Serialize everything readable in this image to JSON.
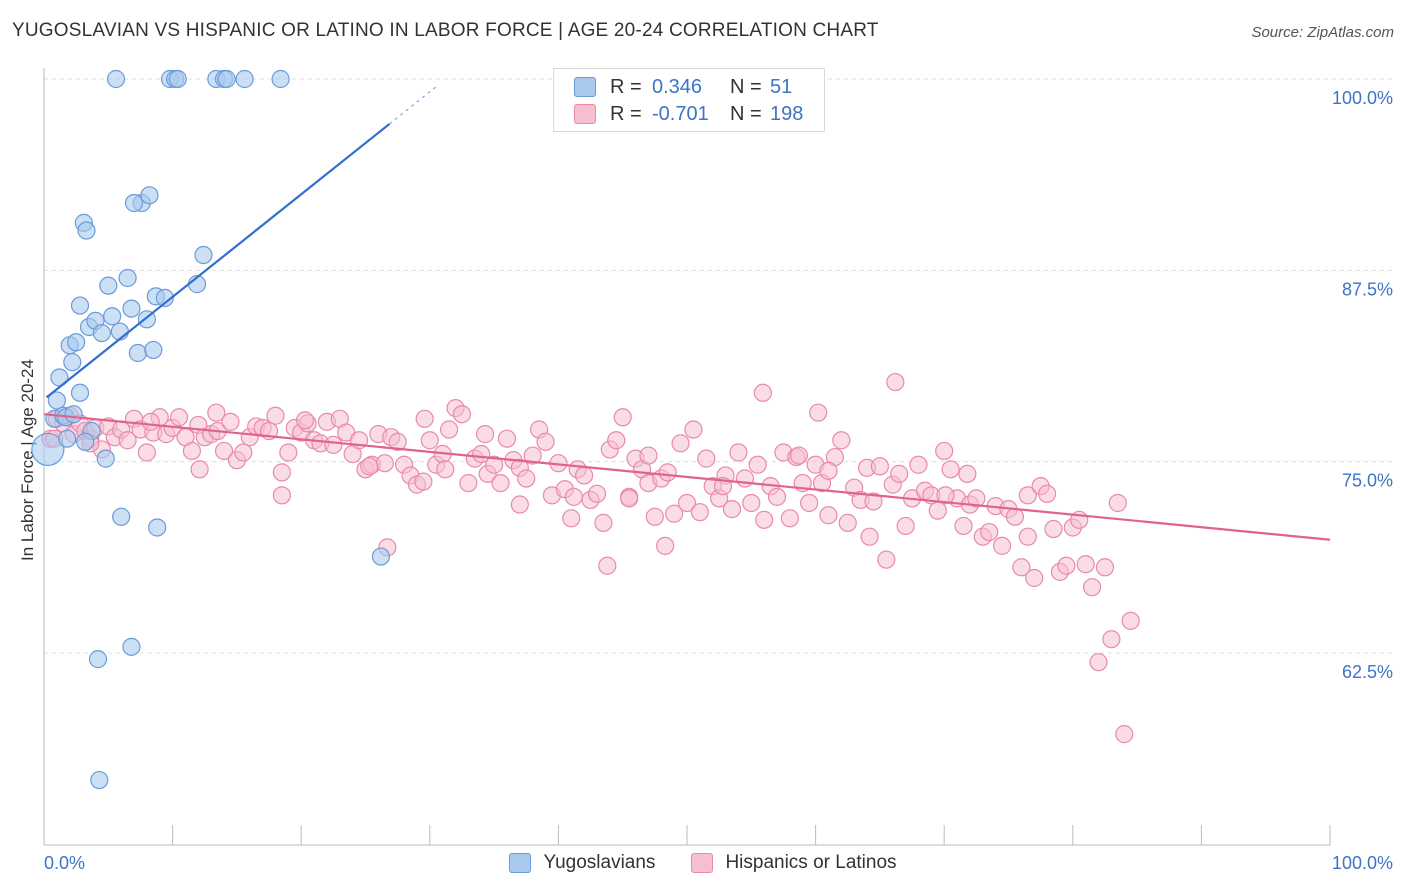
{
  "title": "YUGOSLAVIAN VS HISPANIC OR LATINO IN LABOR FORCE | AGE 20-24 CORRELATION CHART",
  "source": "Source: ZipAtlas.com",
  "colors": {
    "blue_fill": "#a9c9ef",
    "blue_stroke": "#6b9bd8",
    "blue_line": "#2f6fd0",
    "pink_fill": "#f6bfd0",
    "pink_stroke": "#e98aa9",
    "pink_line": "#e0638e",
    "tick_label": "#3d74c6",
    "grid": "#dddddd"
  },
  "legend": {
    "rows": [
      {
        "r_label": "R =",
        "r_value": "0.346",
        "n_label": "N =",
        "n_value": "51"
      },
      {
        "r_label": "R =",
        "r_value": "-0.701",
        "n_label": "N =",
        "n_value": "198"
      }
    ]
  },
  "bottom_legend": [
    "Yugoslavians",
    "Hispanics or Latinos"
  ],
  "chart_data": {
    "type": "scatter",
    "title": "YUGOSLAVIAN VS HISPANIC OR LATINO IN LABOR FORCE | AGE 20-24 CORRELATION CHART",
    "ylabel": "In Labor Force | Age 20-24",
    "xlabel": "",
    "xlim": [
      0,
      100
    ],
    "ylim": [
      51.5,
      101.5
    ],
    "x_tick_labels": [
      "0.0%",
      "100.0%"
    ],
    "y_tick_labels": [
      "100.0%",
      "87.5%",
      "75.0%",
      "62.5%"
    ],
    "y_ticks": [
      100,
      87.5,
      75,
      62.5
    ],
    "grid": true,
    "legend_position": "top-center",
    "series": [
      {
        "name": "Yugoslavians",
        "R": 0.346,
        "N": 51,
        "trend": {
          "x": [
            0.2,
            30.5
          ],
          "y": 79.2,
          "y_end": 99.5
        },
        "points": [
          [
            0.3,
            75.8
          ],
          [
            0.8,
            77.8
          ],
          [
            1,
            79
          ],
          [
            1.2,
            80.5
          ],
          [
            1.5,
            78
          ],
          [
            1.8,
            76.5
          ],
          [
            2,
            82.6
          ],
          [
            2.2,
            81.5
          ],
          [
            2.5,
            82.8
          ],
          [
            2.8,
            79.5
          ],
          [
            2.8,
            85.2
          ],
          [
            3.1,
            90.6
          ],
          [
            3.3,
            90.1
          ],
          [
            3.5,
            83.8
          ],
          [
            3.7,
            77
          ],
          [
            4,
            84.2
          ],
          [
            4.5,
            83.4
          ],
          [
            4.8,
            75.2
          ],
          [
            5,
            86.5
          ],
          [
            5.3,
            84.5
          ],
          [
            5.6,
            100
          ],
          [
            5.9,
            83.5
          ],
          [
            6,
            71.4
          ],
          [
            6.5,
            87
          ],
          [
            6.8,
            85
          ],
          [
            7.3,
            82.1
          ],
          [
            7.6,
            91.9
          ],
          [
            8,
            84.3
          ],
          [
            8.5,
            82.3
          ],
          [
            8.7,
            85.8
          ],
          [
            9.4,
            85.7
          ],
          [
            9.8,
            100
          ],
          [
            10.2,
            100
          ],
          [
            11.9,
            86.6
          ],
          [
            12.4,
            88.5
          ],
          [
            13.4,
            100
          ],
          [
            14,
            100
          ],
          [
            15.6,
            100
          ],
          [
            18.4,
            100
          ],
          [
            8.2,
            92.4
          ],
          [
            7,
            91.9
          ],
          [
            8.8,
            70.7
          ],
          [
            6.8,
            62.9
          ],
          [
            4.2,
            62.1
          ],
          [
            4.3,
            54.2
          ],
          [
            26.2,
            68.8
          ],
          [
            10.4,
            100
          ],
          [
            14.2,
            100
          ],
          [
            1.7,
            77.9
          ],
          [
            2.3,
            78.1
          ],
          [
            3.2,
            76.3
          ]
        ]
      },
      {
        "name": "Hispanics or Latinos",
        "R": -0.701,
        "N": 198,
        "trend": {
          "x": [
            0,
            100
          ],
          "y": 78.1,
          "y_end": 69.9
        },
        "points": [
          [
            0.5,
            76.5
          ],
          [
            1,
            77.8
          ],
          [
            1.5,
            77.5
          ],
          [
            2,
            78
          ],
          [
            2.3,
            76.8
          ],
          [
            2.8,
            77.5
          ],
          [
            3.2,
            77
          ],
          [
            3.6,
            76.5
          ],
          [
            4,
            77.2
          ],
          [
            4.5,
            75.8
          ],
          [
            5,
            77.3
          ],
          [
            5.5,
            76.6
          ],
          [
            6,
            77.1
          ],
          [
            6.5,
            76.4
          ],
          [
            7,
            77.8
          ],
          [
            7.5,
            77.1
          ],
          [
            8,
            75.6
          ],
          [
            8.5,
            76.9
          ],
          [
            9,
            77.9
          ],
          [
            9.5,
            76.8
          ],
          [
            10,
            77.2
          ],
          [
            10.5,
            77.9
          ],
          [
            11,
            76.6
          ],
          [
            11.5,
            75.7
          ],
          [
            12,
            77.4
          ],
          [
            12.5,
            76.6
          ],
          [
            13,
            76.8
          ],
          [
            13.5,
            77
          ],
          [
            14,
            75.7
          ],
          [
            14.5,
            77.6
          ],
          [
            15,
            75.1
          ],
          [
            15.5,
            75.6
          ],
          [
            16,
            76.6
          ],
          [
            16.5,
            77.3
          ],
          [
            17,
            77.2
          ],
          [
            17.5,
            77
          ],
          [
            18,
            78
          ],
          [
            18.5,
            74.3
          ],
          [
            19,
            75.6
          ],
          [
            19.5,
            77.2
          ],
          [
            20,
            76.9
          ],
          [
            20.5,
            77.5
          ],
          [
            21,
            76.4
          ],
          [
            21.5,
            76.2
          ],
          [
            22,
            77.6
          ],
          [
            22.5,
            76.1
          ],
          [
            23,
            77.8
          ],
          [
            23.5,
            76.9
          ],
          [
            24,
            75.5
          ],
          [
            24.5,
            76.4
          ],
          [
            25,
            74.5
          ],
          [
            25.5,
            74.8
          ],
          [
            26,
            76.8
          ],
          [
            26.5,
            74.9
          ],
          [
            27,
            76.6
          ],
          [
            27.5,
            76.3
          ],
          [
            28,
            74.8
          ],
          [
            28.5,
            74.1
          ],
          [
            29,
            73.5
          ],
          [
            29.5,
            73.7
          ],
          [
            30,
            76.4
          ],
          [
            30.5,
            74.8
          ],
          [
            31,
            75.5
          ],
          [
            31.5,
            77.1
          ],
          [
            32,
            78.5
          ],
          [
            32.5,
            78.1
          ],
          [
            33,
            73.6
          ],
          [
            33.5,
            75.2
          ],
          [
            34,
            75.5
          ],
          [
            34.5,
            74.2
          ],
          [
            35,
            74.8
          ],
          [
            35.5,
            73.6
          ],
          [
            36,
            76.5
          ],
          [
            36.5,
            75.1
          ],
          [
            37,
            74.6
          ],
          [
            37.5,
            73.9
          ],
          [
            38,
            75.4
          ],
          [
            38.5,
            77.1
          ],
          [
            39,
            76.3
          ],
          [
            39.5,
            72.8
          ],
          [
            40,
            74.9
          ],
          [
            40.5,
            73.2
          ],
          [
            41,
            71.3
          ],
          [
            41.5,
            74.5
          ],
          [
            42,
            74.1
          ],
          [
            42.5,
            72.5
          ],
          [
            43,
            72.9
          ],
          [
            43.5,
            71
          ],
          [
            44,
            75.8
          ],
          [
            44.5,
            76.4
          ],
          [
            45,
            77.9
          ],
          [
            45.5,
            72.7
          ],
          [
            46,
            75.2
          ],
          [
            46.5,
            74.5
          ],
          [
            47,
            73.6
          ],
          [
            47.5,
            71.4
          ],
          [
            48,
            73.9
          ],
          [
            48.5,
            74.3
          ],
          [
            49,
            71.6
          ],
          [
            49.5,
            76.2
          ],
          [
            50,
            72.3
          ],
          [
            50.5,
            77.1
          ],
          [
            51,
            71.7
          ],
          [
            51.5,
            75.2
          ],
          [
            52,
            73.4
          ],
          [
            52.5,
            72.6
          ],
          [
            53,
            74.1
          ],
          [
            53.5,
            71.9
          ],
          [
            54,
            75.6
          ],
          [
            54.5,
            73.9
          ],
          [
            55,
            72.3
          ],
          [
            55.5,
            74.8
          ],
          [
            56,
            71.2
          ],
          [
            56.5,
            73.4
          ],
          [
            57,
            72.7
          ],
          [
            57.5,
            75.6
          ],
          [
            58,
            71.3
          ],
          [
            58.5,
            75.3
          ],
          [
            59,
            73.6
          ],
          [
            59.5,
            72.3
          ],
          [
            60,
            74.8
          ],
          [
            60.5,
            73.6
          ],
          [
            61,
            71.5
          ],
          [
            61.5,
            75.3
          ],
          [
            62,
            76.4
          ],
          [
            62.5,
            71
          ],
          [
            63,
            73.3
          ],
          [
            63.5,
            72.5
          ],
          [
            64,
            74.6
          ],
          [
            64.5,
            72.4
          ],
          [
            65,
            74.7
          ],
          [
            65.5,
            68.6
          ],
          [
            66,
            73.5
          ],
          [
            66.5,
            74.2
          ],
          [
            67,
            70.8
          ],
          [
            67.5,
            72.6
          ],
          [
            68,
            74.8
          ],
          [
            68.5,
            73.1
          ],
          [
            69,
            72.8
          ],
          [
            69.5,
            71.8
          ],
          [
            70,
            75.7
          ],
          [
            70.5,
            74.5
          ],
          [
            71,
            72.6
          ],
          [
            71.5,
            70.8
          ],
          [
            72,
            72.2
          ],
          [
            72.5,
            72.6
          ],
          [
            73,
            70.1
          ],
          [
            73.5,
            70.4
          ],
          [
            74,
            72.1
          ],
          [
            74.5,
            69.5
          ],
          [
            75,
            71.9
          ],
          [
            75.5,
            71.4
          ],
          [
            76,
            68.1
          ],
          [
            76.5,
            72.8
          ],
          [
            77,
            67.4
          ],
          [
            77.5,
            73.4
          ],
          [
            78,
            72.9
          ],
          [
            78.5,
            70.6
          ],
          [
            79,
            67.8
          ],
          [
            79.5,
            68.2
          ],
          [
            80,
            70.7
          ],
          [
            80.5,
            71.2
          ],
          [
            81,
            68.3
          ],
          [
            81.5,
            66.8
          ],
          [
            82,
            61.9
          ],
          [
            82.5,
            68.1
          ],
          [
            83,
            63.4
          ],
          [
            83.5,
            72.3
          ],
          [
            84,
            57.2
          ],
          [
            84.5,
            64.6
          ],
          [
            0.8,
            76.5
          ],
          [
            3.6,
            76.2
          ],
          [
            55.9,
            79.5
          ],
          [
            66.2,
            80.2
          ],
          [
            34.3,
            76.8
          ],
          [
            29.6,
            77.8
          ],
          [
            45.5,
            72.6
          ],
          [
            70.1,
            72.8
          ],
          [
            60.2,
            78.2
          ],
          [
            18.5,
            72.8
          ],
          [
            76.5,
            70.1
          ],
          [
            37,
            72.2
          ],
          [
            26.7,
            69.4
          ],
          [
            43.8,
            68.2
          ],
          [
            52.8,
            73.4
          ],
          [
            61,
            74.4
          ],
          [
            8.3,
            77.6
          ],
          [
            12.1,
            74.5
          ],
          [
            25.3,
            74.7
          ],
          [
            48.3,
            69.5
          ],
          [
            58.7,
            75.4
          ],
          [
            71.8,
            74.2
          ],
          [
            64.2,
            70.1
          ],
          [
            20.3,
            77.7
          ],
          [
            47,
            75.4
          ],
          [
            13.4,
            78.2
          ],
          [
            31.2,
            74.5
          ],
          [
            41.2,
            72.7
          ]
        ]
      }
    ]
  }
}
